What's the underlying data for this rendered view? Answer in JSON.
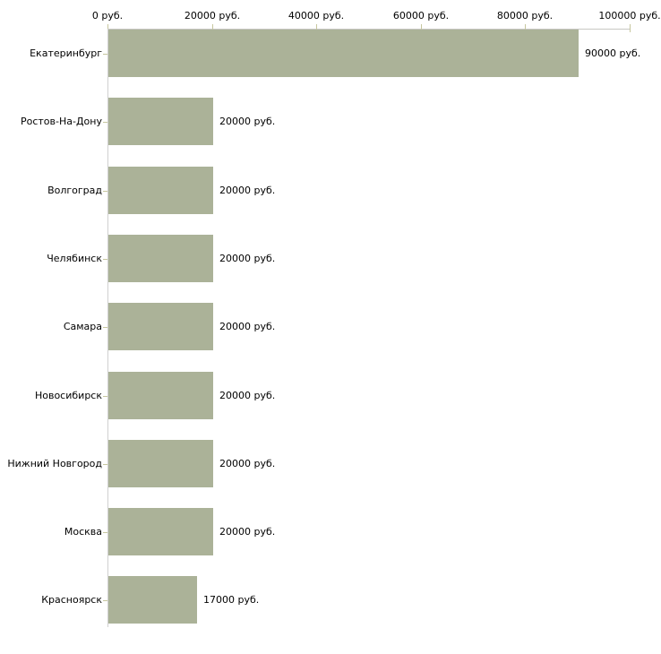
{
  "chart_data": {
    "type": "bar",
    "orientation": "horizontal",
    "title": "",
    "xlabel": "",
    "ylabel": "",
    "categories": [
      "Екатеринбург",
      "Ростов-На-Дону",
      "Волгоград",
      "Челябинск",
      "Самара",
      "Новосибирск",
      "Нижний Новгород",
      "Москва",
      "Красноярск"
    ],
    "values": [
      90000,
      20000,
      20000,
      20000,
      20000,
      20000,
      20000,
      20000,
      17000
    ],
    "value_labels": [
      "90000 руб.",
      "20000 руб.",
      "20000 руб.",
      "20000 руб.",
      "20000 руб.",
      "20000 руб.",
      "20000 руб.",
      "20000 руб.",
      "17000 руб."
    ],
    "x_axis": {
      "position": "top",
      "range": [
        0,
        100000
      ],
      "ticks": [
        0,
        20000,
        40000,
        60000,
        80000,
        100000
      ],
      "tick_labels": [
        "0 руб.",
        "20000 руб.",
        "40000 руб.",
        "60000 руб.",
        "80000 руб.",
        "100000 руб."
      ]
    },
    "grid": false,
    "legend": false,
    "colors": {
      "bar": "#abb298",
      "axis_line": "#c8c8c3",
      "tick_mark": "#c6c69e",
      "text": "#000000",
      "background": "#ffffff"
    }
  }
}
